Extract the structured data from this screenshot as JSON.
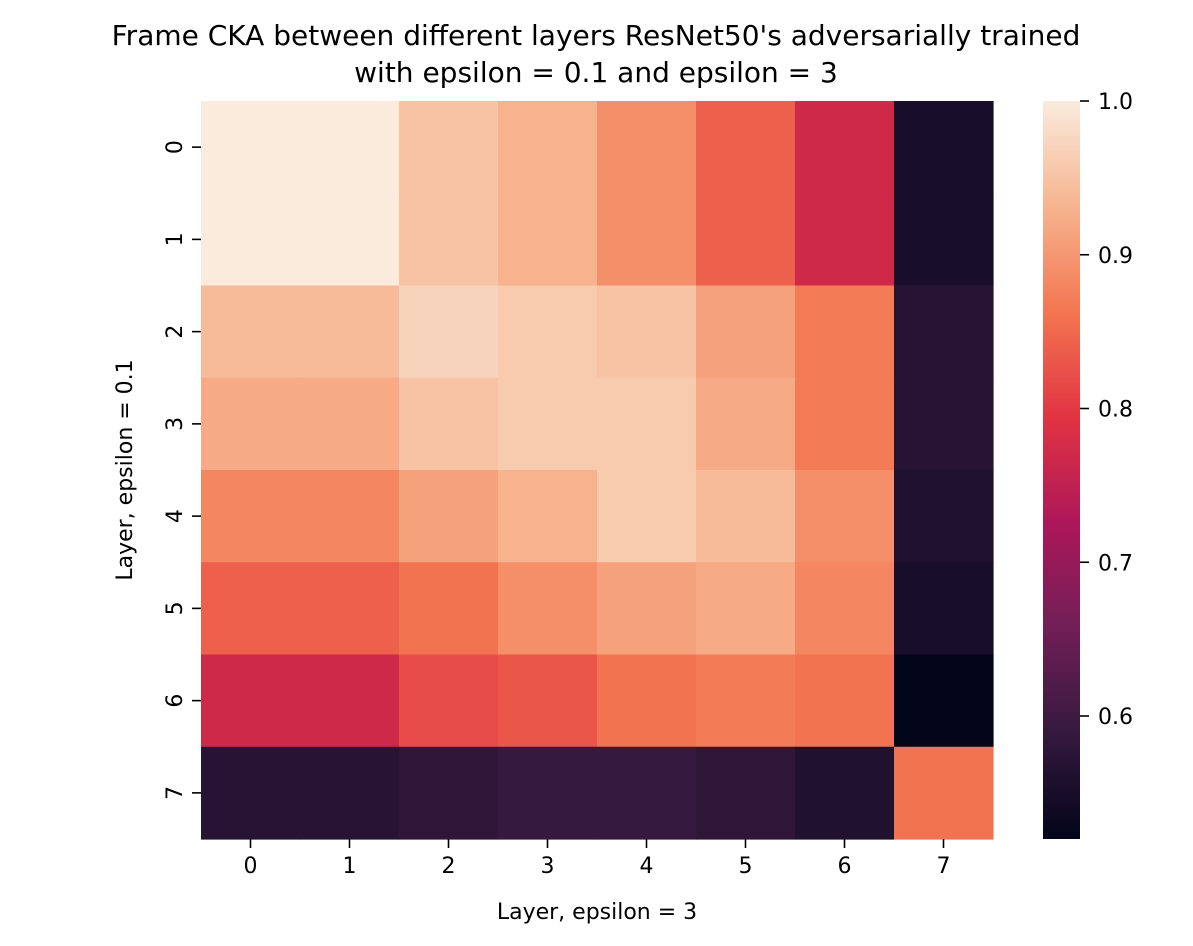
{
  "chart_data": {
    "type": "heatmap",
    "title_lines": [
      "Frame CKA between different layers ResNet50's adversarially trained",
      "with epsilon = 0.1 and epsilon = 3"
    ],
    "xlabel": "Layer, epsilon = 3",
    "ylabel": "Layer, epsilon = 0.1",
    "x_categories": [
      "0",
      "1",
      "2",
      "3",
      "4",
      "5",
      "6",
      "7"
    ],
    "y_categories": [
      "0",
      "1",
      "2",
      "3",
      "4",
      "5",
      "6",
      "7"
    ],
    "values": [
      [
        1.0,
        1.0,
        0.95,
        0.93,
        0.89,
        0.84,
        0.77,
        0.55
      ],
      [
        1.0,
        1.0,
        0.95,
        0.93,
        0.89,
        0.84,
        0.77,
        0.55
      ],
      [
        0.94,
        0.94,
        0.97,
        0.96,
        0.95,
        0.91,
        0.87,
        0.57
      ],
      [
        0.92,
        0.92,
        0.95,
        0.96,
        0.96,
        0.92,
        0.87,
        0.57
      ],
      [
        0.88,
        0.88,
        0.91,
        0.93,
        0.96,
        0.94,
        0.89,
        0.56
      ],
      [
        0.84,
        0.84,
        0.86,
        0.89,
        0.91,
        0.92,
        0.88,
        0.55
      ],
      [
        0.77,
        0.77,
        0.82,
        0.83,
        0.86,
        0.87,
        0.86,
        0.52
      ],
      [
        0.57,
        0.57,
        0.58,
        0.59,
        0.59,
        0.58,
        0.56,
        0.86
      ]
    ],
    "colorbar": {
      "min": 0.52,
      "max": 1.0,
      "ticks": [
        1.0,
        0.9,
        0.8,
        0.7,
        0.6
      ],
      "tick_labels": [
        "1.0",
        "0.9",
        "0.8",
        "0.7",
        "0.6"
      ]
    },
    "colormap": "rocket",
    "colormap_stops": [
      "#03051a",
      "#35193e",
      "#701f57",
      "#ad1759",
      "#e13342",
      "#f37651",
      "#f6b48f",
      "#faebdd"
    ]
  }
}
